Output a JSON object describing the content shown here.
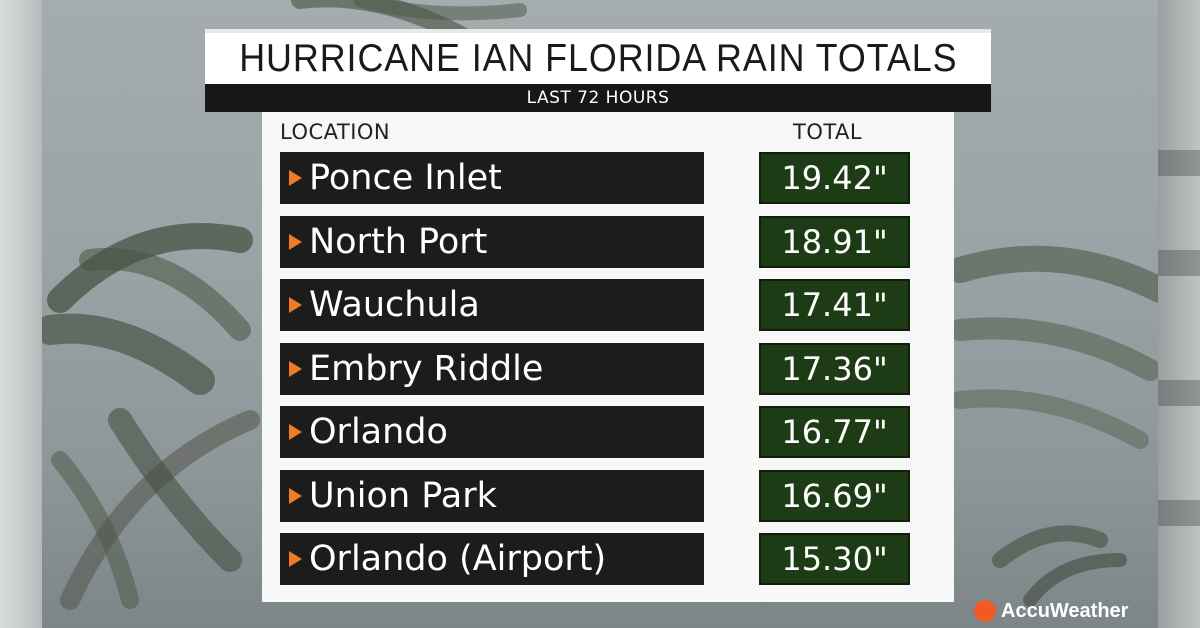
{
  "title": "HURRICANE IAN FLORIDA RAIN TOTALS",
  "subtitle": "LAST 72 HOURS",
  "brand": "AccuWeather",
  "colors": {
    "title_bg": "#ffffff",
    "subtitle_bg": "#171717",
    "location_bg": "#1c1c1c",
    "value_bg": "#1d3b14",
    "arrow": "#f07a28",
    "brand_dot": "#f15a22"
  },
  "chart_data": {
    "type": "table",
    "title": "HURRICANE IAN FLORIDA RAIN TOTALS",
    "subtitle": "LAST 72 HOURS",
    "columns": [
      "LOCATION",
      "TOTAL"
    ],
    "rows": [
      {
        "location": "Ponce Inlet",
        "total": "19.42\""
      },
      {
        "location": "North Port",
        "total": "18.91\""
      },
      {
        "location": "Wauchula",
        "total": "17.41\""
      },
      {
        "location": "Embry Riddle",
        "total": "17.36\""
      },
      {
        "location": "Orlando",
        "total": "16.77\""
      },
      {
        "location": "Union Park",
        "total": "16.69\""
      },
      {
        "location": "Orlando (Airport)",
        "total": "15.30\""
      }
    ]
  }
}
